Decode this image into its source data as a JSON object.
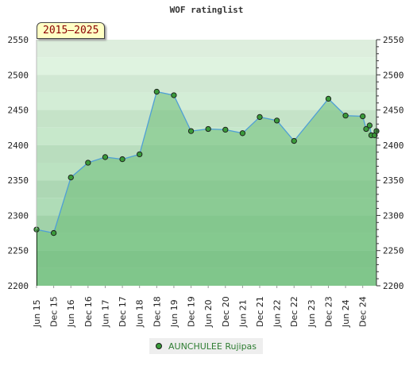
{
  "chart_data": {
    "type": "line",
    "title": "WOF ratinglist",
    "period_label": "2015–2025",
    "ylim": [
      2200,
      2550
    ],
    "yticks": [
      2200,
      2250,
      2300,
      2350,
      2400,
      2450,
      2500,
      2550
    ],
    "xtick_labels": [
      "Jun 15",
      "Dec 15",
      "Jun 16",
      "Dec 16",
      "Jun 17",
      "Dec 17",
      "Jun 18",
      "Dec 18",
      "Jun 19",
      "Dec 19",
      "Jun 20",
      "Dec 20",
      "Jun 21",
      "Dec 21",
      "Jun 22",
      "Dec 22",
      "Jun 23",
      "Dec 23",
      "Jun 24",
      "Dec 24"
    ],
    "x_range": [
      0,
      19.8
    ],
    "series": [
      {
        "name": "AUNCHULEE Rujipas",
        "color": "#3a9a3a",
        "points": [
          {
            "x": 0,
            "y": 2280
          },
          {
            "x": 1,
            "y": 2275
          },
          {
            "x": 2,
            "y": 2354
          },
          {
            "x": 3,
            "y": 2375
          },
          {
            "x": 4,
            "y": 2383
          },
          {
            "x": 5,
            "y": 2380
          },
          {
            "x": 6,
            "y": 2387
          },
          {
            "x": 7,
            "y": 2476
          },
          {
            "x": 8,
            "y": 2471
          },
          {
            "x": 9,
            "y": 2420
          },
          {
            "x": 10,
            "y": 2423
          },
          {
            "x": 11,
            "y": 2422
          },
          {
            "x": 12,
            "y": 2417
          },
          {
            "x": 13,
            "y": 2440
          },
          {
            "x": 14,
            "y": 2435
          },
          {
            "x": 15,
            "y": 2406
          },
          {
            "x": 17,
            "y": 2466
          },
          {
            "x": 18,
            "y": 2442
          },
          {
            "x": 19,
            "y": 2441
          },
          {
            "x": 19.2,
            "y": 2423
          },
          {
            "x": 19.4,
            "y": 2428
          },
          {
            "x": 19.5,
            "y": 2414
          },
          {
            "x": 19.7,
            "y": 2414
          },
          {
            "x": 19.8,
            "y": 2420
          }
        ]
      }
    ]
  },
  "colors": {
    "band_top": "#ddeedd",
    "band_bottom": "#8fc99a",
    "line": "#4f9fd6",
    "area": "#6dbd79"
  }
}
